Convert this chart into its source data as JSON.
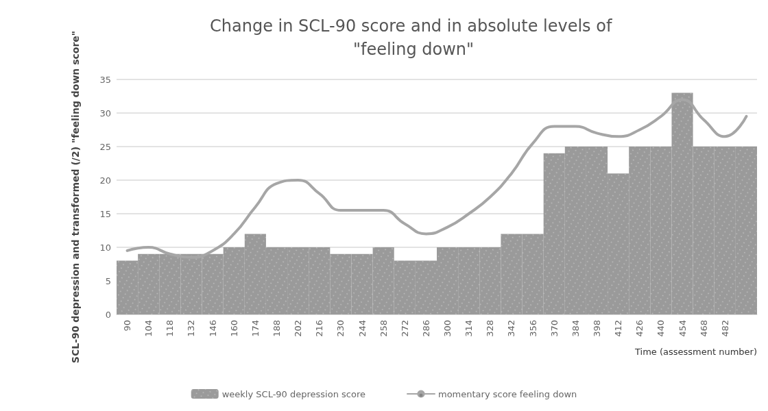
{
  "chart_data": {
    "type": "bar",
    "title": "Change in SCL-90 score and in absolute levels of \"feeling down\"",
    "xlabel": "Time (assessment number)",
    "ylabel": "SCL-90 depression and transformed (/2) \"feeling down score\"",
    "categories": [
      "90",
      "104",
      "118",
      "132",
      "146",
      "160",
      "174",
      "188",
      "202",
      "216",
      "230",
      "244",
      "258",
      "272",
      "286",
      "300",
      "314",
      "328",
      "342",
      "356",
      "370",
      "384",
      "398",
      "412",
      "426",
      "440",
      "454",
      "468",
      "482",
      null
    ],
    "series": [
      {
        "name": "weekly SCL-90 depression score",
        "color": "#9a9a9a",
        "values": [
          8,
          9,
          9,
          9,
          9,
          10,
          12,
          10,
          10,
          10,
          9,
          9,
          10,
          8,
          8,
          10,
          10,
          10,
          12,
          12,
          24,
          25,
          25,
          21,
          25,
          25,
          33,
          25,
          25,
          25
        ]
      },
      {
        "name": "momentary score feeling down",
        "type": "line",
        "color": "#a6a6a6",
        "values": [
          9.5,
          10,
          9,
          8.5,
          9.5,
          12,
          16,
          19.5,
          20,
          18,
          15.5,
          15.5,
          15.5,
          13.5,
          12,
          13,
          15,
          17.5,
          21,
          25.5,
          28,
          28,
          27,
          26.5,
          27.5,
          29.5,
          32,
          29,
          26.5,
          29.5
        ]
      }
    ],
    "ylim": [
      0,
      35
    ],
    "yticks": [
      0,
      5,
      10,
      15,
      20,
      25,
      30,
      35
    ],
    "grid": "y",
    "legend": "bottom",
    "marker": "none",
    "line_style": "solid"
  }
}
